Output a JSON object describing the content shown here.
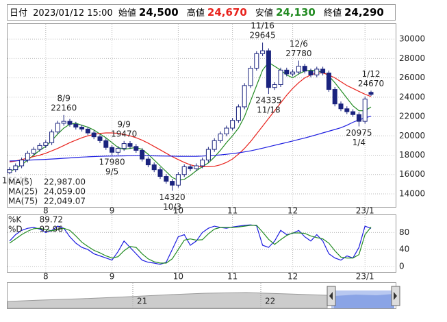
{
  "header": {
    "date_label": "日付",
    "datetime": "2023/01/12 15:00",
    "open_label": "始値",
    "open": "24,500",
    "high_label": "高値",
    "high": "24,670",
    "low_label": "安値",
    "low": "24,130",
    "close_label": "終値",
    "close": "24,290"
  },
  "chart_data": [
    {
      "type": "candlestick",
      "categories": [
        null,
        null,
        null,
        null,
        null,
        null,
        "8",
        null,
        null,
        null,
        null,
        null,
        null,
        null,
        null,
        null,
        null,
        "9",
        null,
        null,
        null,
        null,
        null,
        null,
        null,
        null,
        null,
        null,
        "10",
        null,
        null,
        null,
        null,
        null,
        null,
        null,
        null,
        "11",
        null,
        null,
        null,
        null,
        null,
        null,
        null,
        null,
        null,
        "12",
        null,
        null,
        null,
        null,
        null,
        null,
        null,
        null,
        null,
        null,
        null,
        "23/1",
        null
      ],
      "open": [
        16200,
        16500,
        16900,
        17500,
        18200,
        18600,
        19000,
        19300,
        20400,
        21300,
        21500,
        21200,
        20900,
        20700,
        20300,
        19900,
        19500,
        18800,
        18300,
        18700,
        19200,
        18900,
        18500,
        17600,
        17000,
        16500,
        15800,
        15300,
        14900,
        16000,
        16800,
        16600,
        16900,
        17500,
        18600,
        19500,
        20200,
        20800,
        21600,
        23000,
        25200,
        27000,
        28500,
        28800,
        25000,
        25300,
        26800,
        26400,
        26600,
        27200,
        26700,
        26300,
        26900,
        26500,
        24800,
        23300,
        22800,
        22500,
        22200,
        21500,
        24500
      ],
      "high": [
        16750,
        17150,
        17750,
        18450,
        18850,
        19250,
        19550,
        20650,
        21550,
        22160,
        21750,
        21450,
        21150,
        20950,
        20550,
        20150,
        19750,
        19050,
        18950,
        19470,
        19450,
        19150,
        18750,
        17850,
        17250,
        16750,
        16050,
        15550,
        16250,
        17050,
        17050,
        17150,
        17750,
        18850,
        19750,
        20450,
        21050,
        21850,
        23250,
        25450,
        27250,
        28750,
        29645,
        29050,
        25550,
        27050,
        27050,
        26850,
        27780,
        27450,
        26950,
        27150,
        27150,
        26750,
        25050,
        23550,
        23050,
        22750,
        22450,
        24050,
        24670
      ],
      "low": [
        16040,
        16250,
        16650,
        17250,
        17950,
        18350,
        18750,
        19050,
        20150,
        21050,
        20950,
        20650,
        20450,
        20050,
        19650,
        19250,
        18550,
        17980,
        18050,
        18450,
        18650,
        18250,
        17350,
        16750,
        16250,
        15550,
        15050,
        14320,
        14650,
        15750,
        16350,
        16350,
        16650,
        17250,
        18350,
        19250,
        19950,
        20550,
        21350,
        22750,
        24950,
        26750,
        28250,
        24335,
        24750,
        25050,
        26150,
        26150,
        26350,
        26450,
        26050,
        26050,
        26250,
        24550,
        23050,
        22550,
        22250,
        21950,
        20975,
        21250,
        24130
      ],
      "close": [
        16500,
        16900,
        17500,
        18200,
        18600,
        19000,
        19300,
        20400,
        21300,
        21500,
        21200,
        20900,
        20700,
        20300,
        19900,
        19500,
        18800,
        18300,
        18700,
        19200,
        18900,
        18500,
        17600,
        17000,
        16500,
        15800,
        15300,
        14900,
        16000,
        16800,
        16600,
        16900,
        17500,
        18600,
        19500,
        20200,
        20800,
        21600,
        23000,
        25200,
        27000,
        28500,
        28800,
        25000,
        25300,
        26800,
        26400,
        26600,
        27200,
        26700,
        26300,
        26900,
        26500,
        24800,
        23300,
        22800,
        22500,
        22200,
        21500,
        23800,
        24290
      ],
      "up_color": "#ffffff",
      "down_color": "#1a237e",
      "annotations": [
        "8/9",
        "9/9",
        "9/5",
        "10/3",
        "11/16",
        "11/18",
        "12/6",
        "1/12",
        "1/4"
      ],
      "series": [
        {
          "name": "MA(5)",
          "color": "#228b22",
          "legend_value": "22,987.00",
          "values": [
            16300,
            16600,
            17000,
            17500,
            18000,
            18500,
            18900,
            19500,
            20200,
            20800,
            21200,
            21300,
            21100,
            20900,
            20600,
            20200,
            19800,
            19300,
            18800,
            18600,
            18700,
            18800,
            18600,
            18100,
            17500,
            16900,
            16300,
            15700,
            15400,
            15500,
            15900,
            16400,
            16800,
            17200,
            17800,
            18500,
            19300,
            20000,
            20800,
            22000,
            23600,
            25200,
            26800,
            27600,
            27200,
            26800,
            26300,
            26000,
            26400,
            26700,
            26800,
            26700,
            26600,
            26200,
            25500,
            24700,
            23900,
            23100,
            22600,
            22600,
            22987
          ]
        },
        {
          "name": "MA(25)",
          "color": "#e8221c",
          "legend_value": "24,059.00",
          "values": [
            17300,
            17400,
            17550,
            17700,
            17850,
            18000,
            18200,
            18450,
            18700,
            19000,
            19300,
            19550,
            19800,
            20000,
            20150,
            20250,
            20300,
            20300,
            20250,
            20150,
            20000,
            19800,
            19550,
            19250,
            18900,
            18550,
            18200,
            17850,
            17550,
            17250,
            17000,
            16850,
            16800,
            16800,
            16850,
            17000,
            17250,
            17600,
            18100,
            18700,
            19400,
            20200,
            21000,
            21800,
            22600,
            23400,
            24200,
            24900,
            25500,
            26000,
            26300,
            26500,
            26500,
            26300,
            26000,
            25600,
            25200,
            24900,
            24600,
            24300,
            24059
          ]
        },
        {
          "name": "MA(75)",
          "color": "#1c1ce0",
          "legend_value": "22,049.07",
          "values": [
            17400,
            17420,
            17450,
            17480,
            17510,
            17540,
            17570,
            17600,
            17640,
            17680,
            17720,
            17760,
            17800,
            17830,
            17860,
            17880,
            17900,
            17910,
            17920,
            17930,
            17940,
            17950,
            17950,
            17940,
            17930,
            17920,
            17910,
            17900,
            17890,
            17880,
            17880,
            17890,
            17910,
            17940,
            17980,
            18030,
            18090,
            18160,
            18240,
            18340,
            18450,
            18580,
            18720,
            18870,
            19020,
            19170,
            19320,
            19470,
            19620,
            19780,
            19950,
            20120,
            20300,
            20480,
            20660,
            20840,
            21100,
            21400,
            21650,
            21850,
            22049.07
          ]
        }
      ],
      "ylim": [
        12650,
        31570
      ],
      "yticks": [
        14000,
        16000,
        18000,
        20000,
        22000,
        24000,
        26000,
        28000,
        30000
      ],
      "grid": true
    },
    {
      "type": "line",
      "categories": [
        null,
        null,
        null,
        null,
        null,
        null,
        "8",
        null,
        null,
        null,
        null,
        null,
        null,
        null,
        null,
        null,
        null,
        "9",
        null,
        null,
        null,
        null,
        null,
        null,
        null,
        null,
        null,
        null,
        "10",
        null,
        null,
        null,
        null,
        null,
        null,
        null,
        null,
        "11",
        null,
        null,
        null,
        null,
        null,
        null,
        null,
        null,
        null,
        "12",
        null,
        null,
        null,
        null,
        null,
        null,
        null,
        null,
        null,
        null,
        null,
        "23/1",
        null
      ],
      "series": [
        {
          "name": "%K",
          "color": "#1c1ce0",
          "values": [
            60,
            75,
            85,
            90,
            92,
            88,
            80,
            85,
            95,
            90,
            70,
            55,
            45,
            40,
            30,
            25,
            20,
            15,
            35,
            60,
            45,
            30,
            15,
            10,
            8,
            5,
            10,
            40,
            70,
            75,
            50,
            60,
            80,
            90,
            95,
            92,
            90,
            93,
            95,
            97,
            98,
            96,
            50,
            45,
            60,
            85,
            75,
            78,
            85,
            70,
            60,
            75,
            60,
            30,
            20,
            15,
            25,
            20,
            45,
            95,
            89.72
          ]
        },
        {
          "name": "%D",
          "color": "#228b22",
          "values": [
            55,
            65,
            75,
            83,
            89,
            90,
            87,
            84,
            87,
            90,
            85,
            72,
            57,
            47,
            38,
            32,
            25,
            20,
            23,
            37,
            47,
            45,
            30,
            18,
            11,
            8,
            8,
            18,
            40,
            62,
            65,
            62,
            63,
            77,
            88,
            92,
            92,
            92,
            93,
            95,
            97,
            97,
            81,
            64,
            52,
            63,
            73,
            79,
            79,
            78,
            72,
            68,
            65,
            55,
            37,
            22,
            20,
            20,
            28,
            75,
            92.96
          ]
        }
      ],
      "ylim": [
        -13,
        121
      ],
      "yticks": [
        0,
        40,
        80
      ],
      "grid": true
    }
  ],
  "navigator": {
    "labels": [
      "21",
      "22"
    ]
  }
}
